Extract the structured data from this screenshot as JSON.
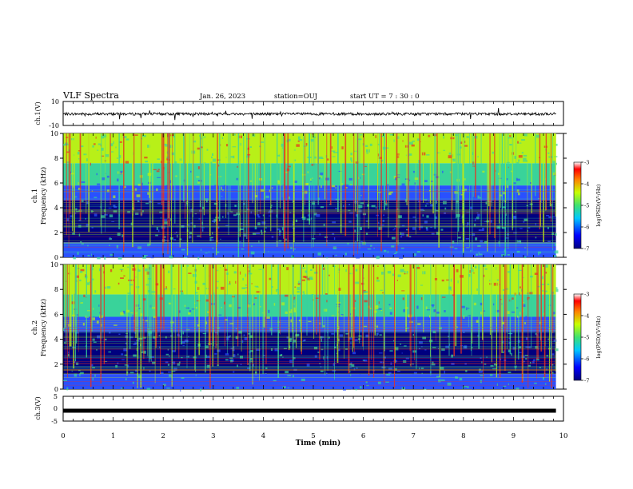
{
  "header": {
    "title": "VLF Spectra",
    "date": "Jan. 26, 2023",
    "station": "station=OUJ",
    "start_ut": "start UT =  7 : 30 : 0"
  },
  "colors": {
    "spectrogram_low": "#00007f",
    "spectrogram_mid": "#2a50ff",
    "spectrogram_band": "#39d39a",
    "spectrogram_high": "#b8f018",
    "spectrogram_peak": "#e83020",
    "waveform": "#000000"
  },
  "chart_data": [
    {
      "type": "line",
      "name": "ch1-waveform",
      "ylabel": "ch.1(V)",
      "ylim": [
        -10,
        10
      ],
      "yticks": [
        "10",
        "-10"
      ],
      "xlim": [
        0,
        10
      ],
      "baseline": 0,
      "note": "dense VLF waveform trace"
    },
    {
      "type": "heatmap",
      "name": "ch1-spectrogram",
      "ylabel_channel": "ch.1",
      "ylabel": "Frequency (kHz)",
      "ylim": [
        0,
        10
      ],
      "yticks": [
        "0",
        "2",
        "4",
        "6",
        "8",
        "10"
      ],
      "xlim": [
        0,
        9.85
      ],
      "colorbar": {
        "label": "log(PSD)(V²/Hz)",
        "ticks": [
          "-3",
          "-4",
          "-5",
          "-6",
          "-7"
        ],
        "range": [
          -7,
          -3
        ]
      }
    },
    {
      "type": "heatmap",
      "name": "ch2-spectrogram",
      "ylabel_channel": "ch.2",
      "ylabel": "Frequency (kHz)",
      "ylim": [
        0,
        10
      ],
      "yticks": [
        "0",
        "2",
        "4",
        "6",
        "8",
        "10"
      ],
      "xlim": [
        0,
        9.85
      ],
      "colorbar": {
        "label": "log(PSD)(V²/Hz)",
        "ticks": [
          "-3",
          "-4",
          "-5",
          "-6",
          "-7"
        ],
        "range": [
          -7,
          -3
        ]
      }
    },
    {
      "type": "line",
      "name": "ch3-waveform",
      "ylabel": "ch.3(V)",
      "ylim": [
        -5,
        5
      ],
      "yticks": [
        "5",
        "0",
        "-5"
      ],
      "xlim": [
        0,
        10
      ],
      "constant_value": -0.8
    }
  ],
  "xaxis": {
    "label": "Time (min)",
    "range": [
      0,
      10
    ],
    "ticks": [
      "0",
      "1",
      "2",
      "3",
      "4",
      "5",
      "6",
      "7",
      "8",
      "9",
      "10"
    ]
  }
}
